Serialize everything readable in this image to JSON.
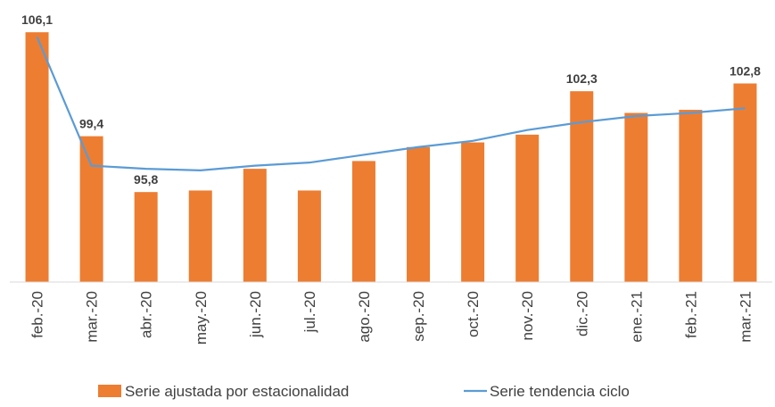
{
  "chart_data": {
    "type": "bar-line",
    "categories": [
      "feb.-20",
      "mar.-20",
      "abr.-20",
      "may.-20",
      "jun.-20",
      "jul.-20",
      "ago.-20",
      "sep.-20",
      "oct.-20",
      "nov.-20",
      "dic.-20",
      "ene.-21",
      "feb.-21",
      "mar.-21"
    ],
    "series": [
      {
        "name": "Serie ajustada por estacionalidad",
        "type": "bar",
        "color": "#ed7d31",
        "values": [
          106.1,
          99.4,
          95.8,
          95.9,
          97.3,
          95.9,
          97.8,
          98.7,
          99.0,
          99.5,
          102.3,
          100.9,
          101.1,
          102.8
        ],
        "value_labels": [
          "106,1",
          "99,4",
          "95,8",
          null,
          null,
          null,
          null,
          null,
          null,
          null,
          "102,3",
          null,
          null,
          "102,8"
        ]
      },
      {
        "name": "Serie tendencia ciclo",
        "type": "line",
        "color": "#5b9bd5",
        "values": [
          105.8,
          97.5,
          97.3,
          97.2,
          97.5,
          97.7,
          98.2,
          98.7,
          99.1,
          99.8,
          100.3,
          100.7,
          100.9,
          101.2
        ]
      }
    ],
    "ylim": [
      90,
      107
    ]
  }
}
